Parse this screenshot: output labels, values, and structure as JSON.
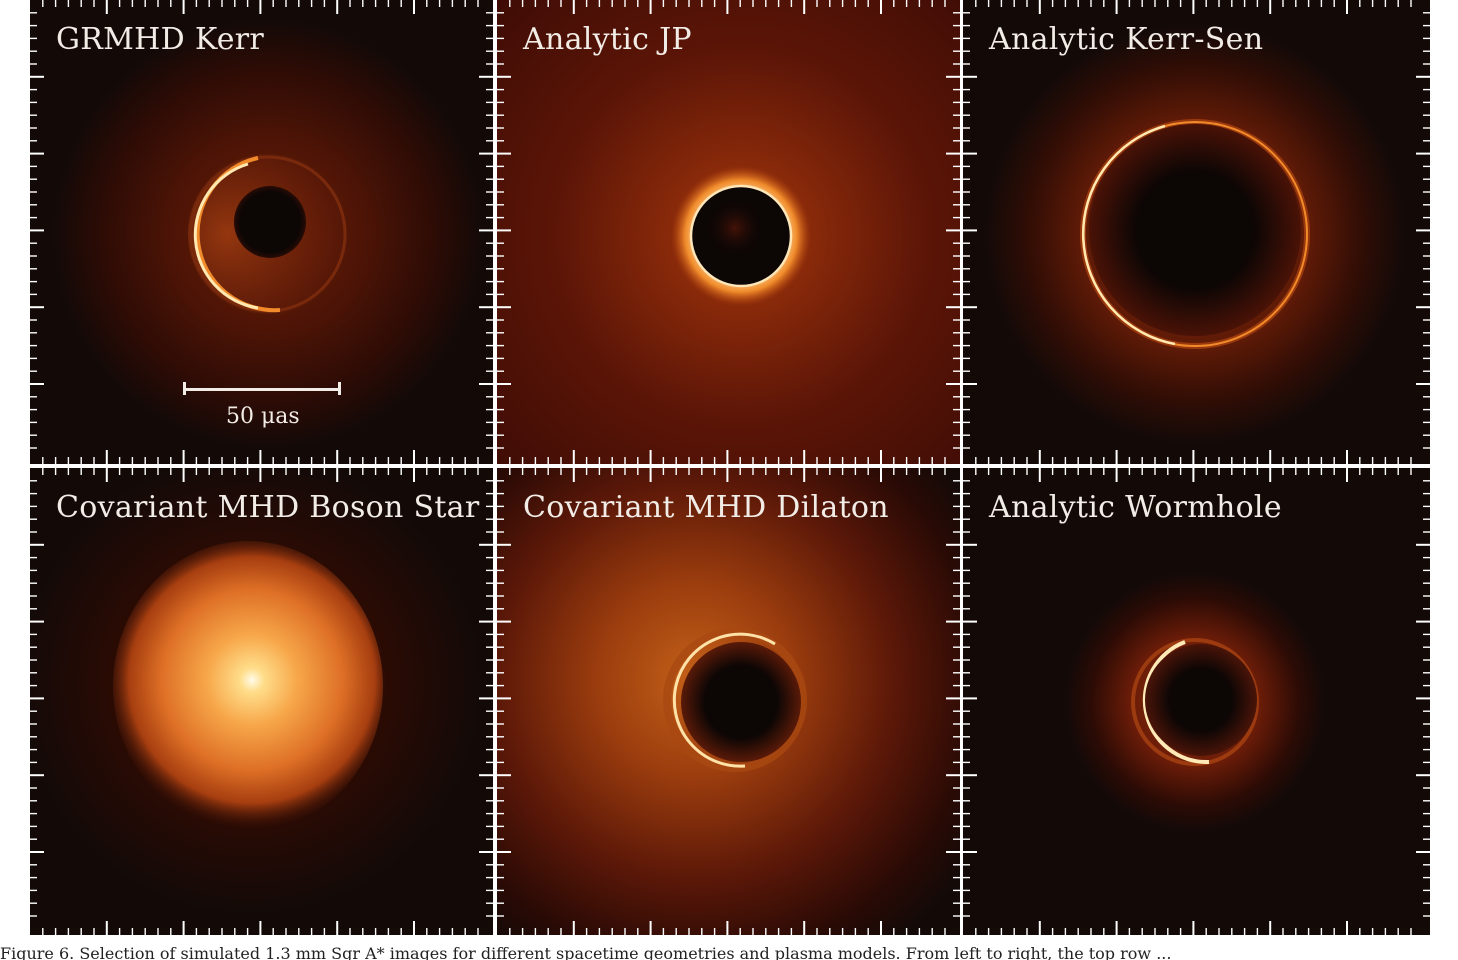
{
  "figure": {
    "panels": [
      {
        "id": "grmhd-kerr",
        "title": "GRMHD Kerr",
        "style": "kerr",
        "background": "#130a08"
      },
      {
        "id": "analytic-jp",
        "title": "Analytic JP",
        "style": "jp",
        "background": "#4a0f06"
      },
      {
        "id": "analytic-kerr-sen",
        "title": "Analytic Kerr-Sen",
        "style": "kerrsen",
        "background": "#130a08"
      },
      {
        "id": "covariant-mhd-boson-star",
        "title": "Covariant MHD Boson Star",
        "style": "boson",
        "background": "#130a08"
      },
      {
        "id": "covariant-mhd-dilaton",
        "title": "Covariant MHD Dilaton",
        "style": "dilaton",
        "background": "#130a08"
      },
      {
        "id": "analytic-wormhole",
        "title": "Analytic Wormhole",
        "style": "wormhole",
        "background": "#130a08"
      }
    ],
    "scale_bar": {
      "label": "50 μas"
    }
  },
  "caption": {
    "text": "Figure 6. Selection of simulated 1.3 mm Sgr A* images for different spacetime geometries and plasma models. From left to right, the top row ..."
  },
  "colors": {
    "ring_bright": "#ffe9b0",
    "ring_mid": "#f08a2a",
    "glow": "#b6400e",
    "shadow": "#0c0605",
    "tick": "#ffffff"
  }
}
